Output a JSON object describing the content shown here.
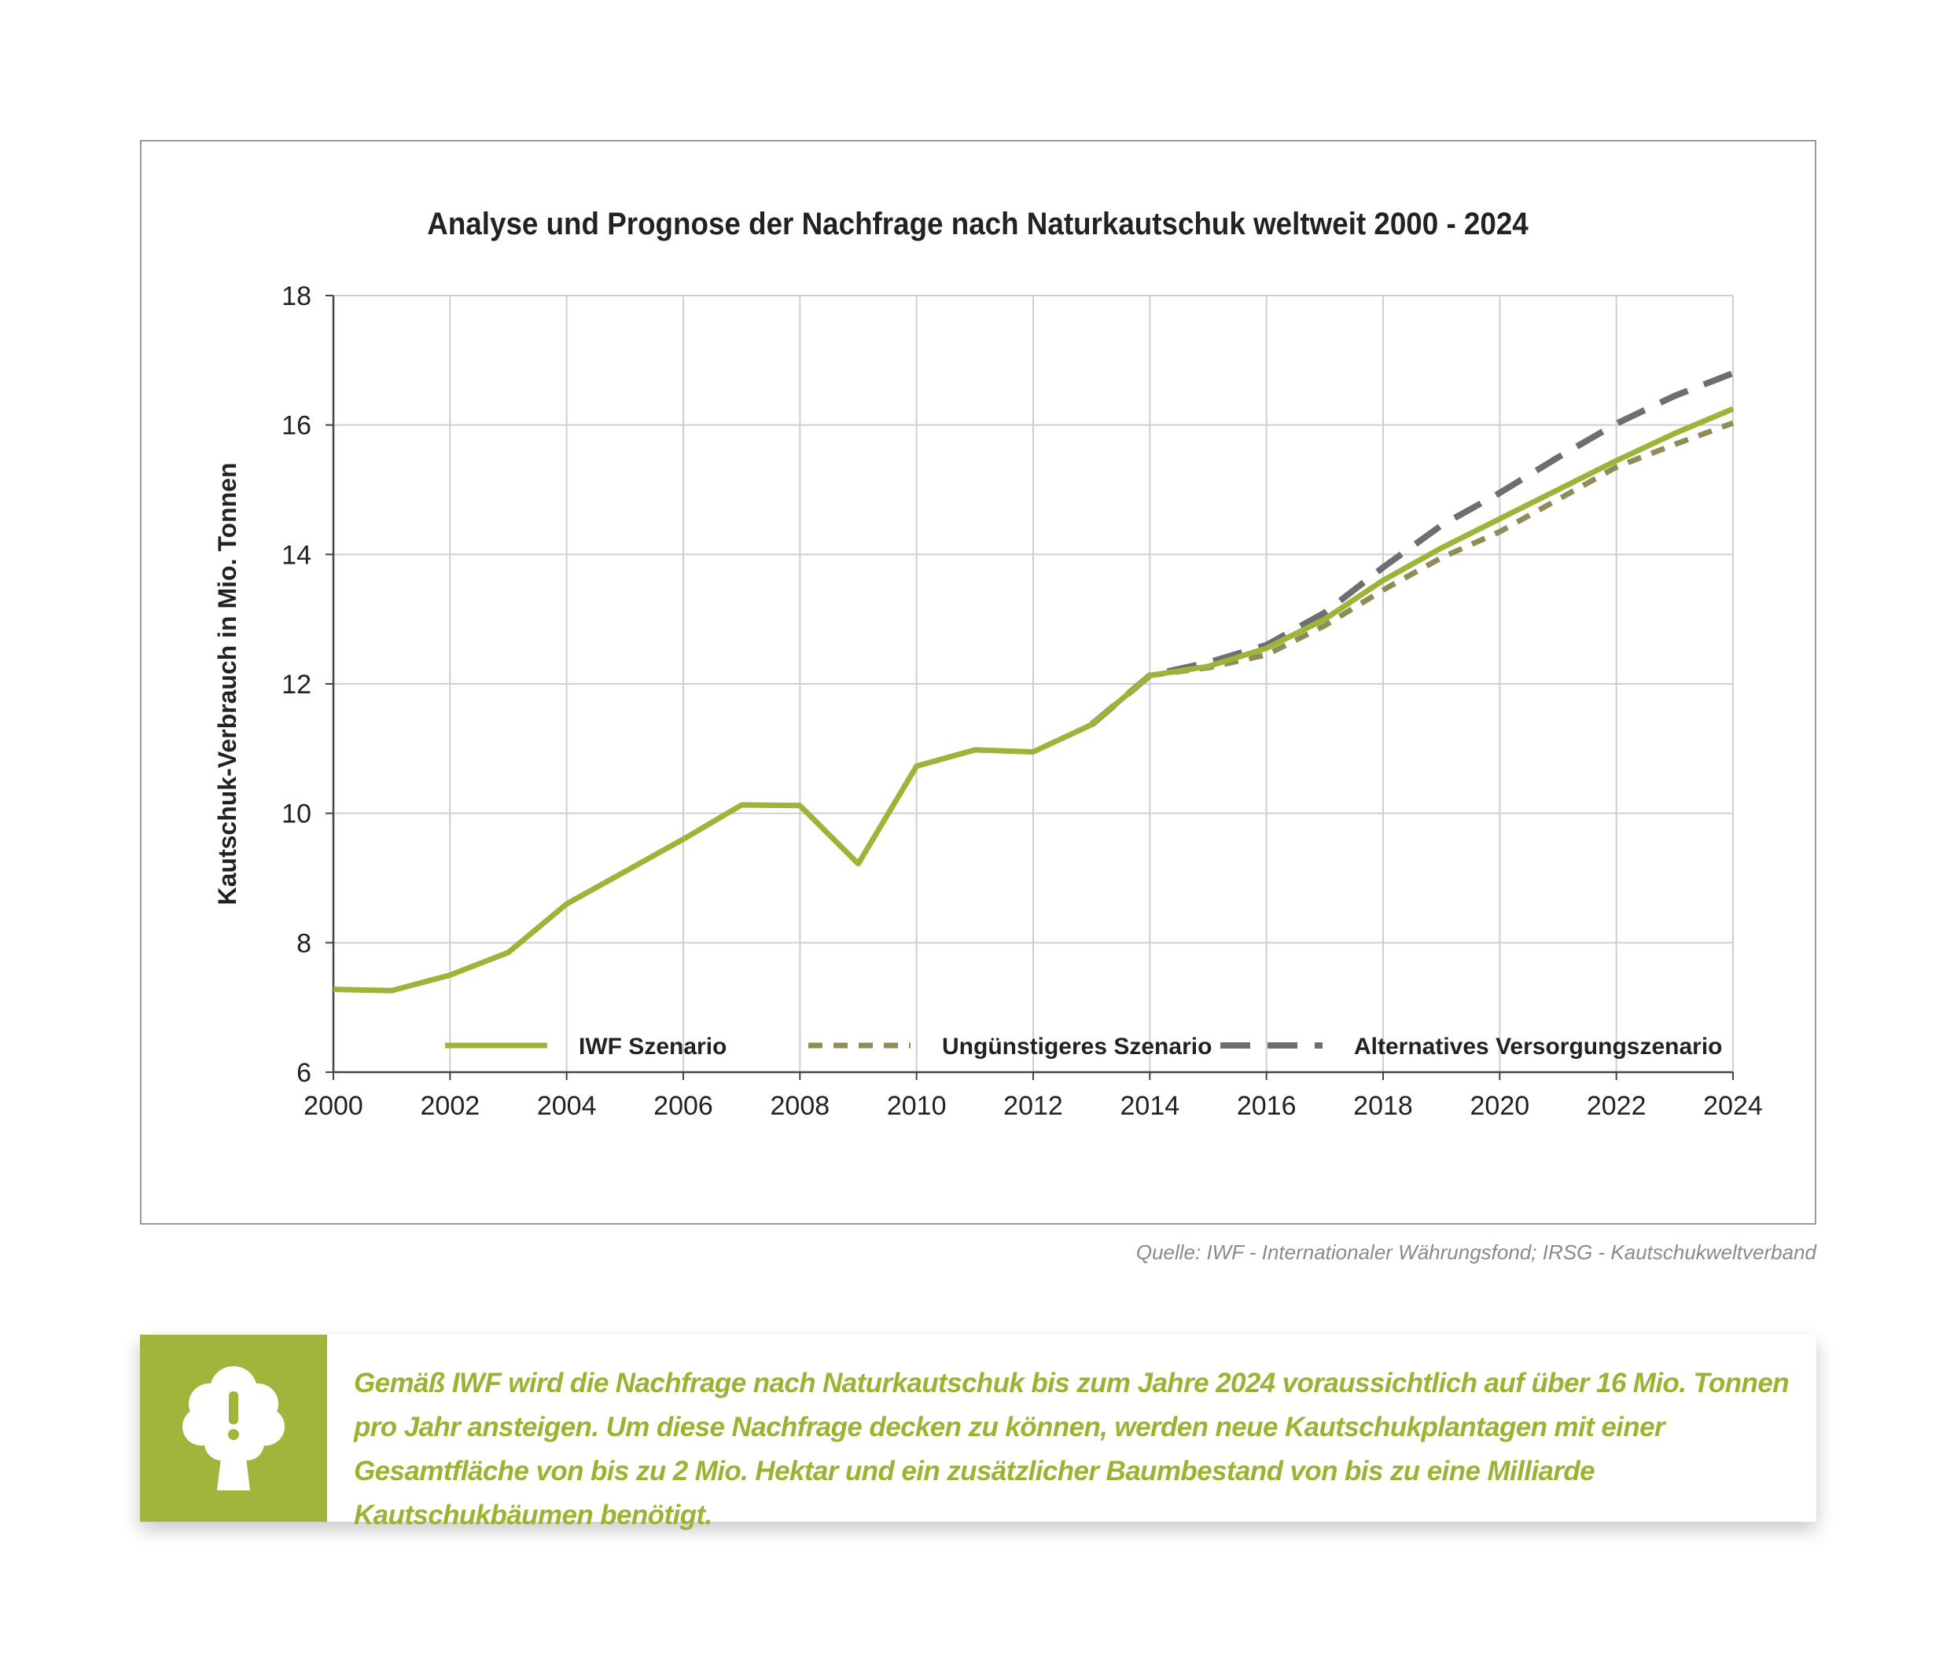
{
  "chart_data": {
    "type": "line",
    "title": "Analyse und Prognose der Nachfrage nach Naturkautschuk weltweit 2000 - 2024",
    "ylabel": "Kautschuk-Verbrauch in Mio. Tonnen",
    "xlabel": "",
    "xlim": [
      2000,
      2024
    ],
    "ylim": [
      6,
      18
    ],
    "x_ticks": [
      "2000",
      "2002",
      "2004",
      "2006",
      "2008",
      "2010",
      "2012",
      "2014",
      "2016",
      "2018",
      "2020",
      "2022",
      "2024"
    ],
    "y_ticks": [
      "6",
      "8",
      "10",
      "12",
      "14",
      "16",
      "18"
    ],
    "grid": true,
    "legend_position": "bottom",
    "series": [
      {
        "name": "IWF Szenario",
        "color": "#9cb437",
        "style": "solid",
        "x": [
          2000,
          2001,
          2002,
          2003,
          2004,
          2005,
          2006,
          2007,
          2008,
          2009,
          2010,
          2011,
          2012,
          2013,
          2014,
          2015,
          2016,
          2017,
          2018,
          2019,
          2020,
          2021,
          2022,
          2023,
          2024
        ],
        "y": [
          7.28,
          7.26,
          7.5,
          7.85,
          8.6,
          9.1,
          9.6,
          10.13,
          10.12,
          9.22,
          10.73,
          10.98,
          10.95,
          11.37,
          12.13,
          12.27,
          12.55,
          13.0,
          13.6,
          14.1,
          14.55,
          15.0,
          15.45,
          15.87,
          16.25
        ]
      },
      {
        "name": "Ungünstigeres Szenario",
        "color": "#8f8c5a",
        "style": "dashed",
        "x": [
          2014,
          2015,
          2016,
          2017,
          2018,
          2019,
          2020,
          2021,
          2022,
          2023,
          2024
        ],
        "y": [
          12.13,
          12.25,
          12.45,
          12.9,
          13.45,
          13.95,
          14.35,
          14.85,
          15.35,
          15.7,
          16.03
        ]
      },
      {
        "name": "Alternatives Versorgungszenario",
        "color": "#6d6e71",
        "style": "dashed",
        "x": [
          2013,
          2014,
          2015,
          2016,
          2017,
          2018,
          2019,
          2020,
          2021,
          2022,
          2023,
          2024
        ],
        "y": [
          11.37,
          12.13,
          12.33,
          12.6,
          13.1,
          13.8,
          14.45,
          14.95,
          15.5,
          16.02,
          16.45,
          16.8
        ]
      }
    ]
  },
  "source": "Quelle: IWF - Internationaler Währungsfond; IRSG - Kautschukweltverband",
  "info_box": {
    "icon": "tree-exclamation-icon",
    "text": "Gemäß IWF wird die Nachfrage nach Naturkautschuk bis zum Jahre 2024 voraussichtlich auf über 16 Mio. Tonnen pro Jahr ansteigen. Um diese Nachfrage decken zu können, werden neue Kautschukplantagen mit einer Gesamtfläche von bis zu 2 Mio. Hektar und ein zusätzlicher Baumbestand von bis zu eine Milliarde Kautschukbäumen benötigt."
  }
}
